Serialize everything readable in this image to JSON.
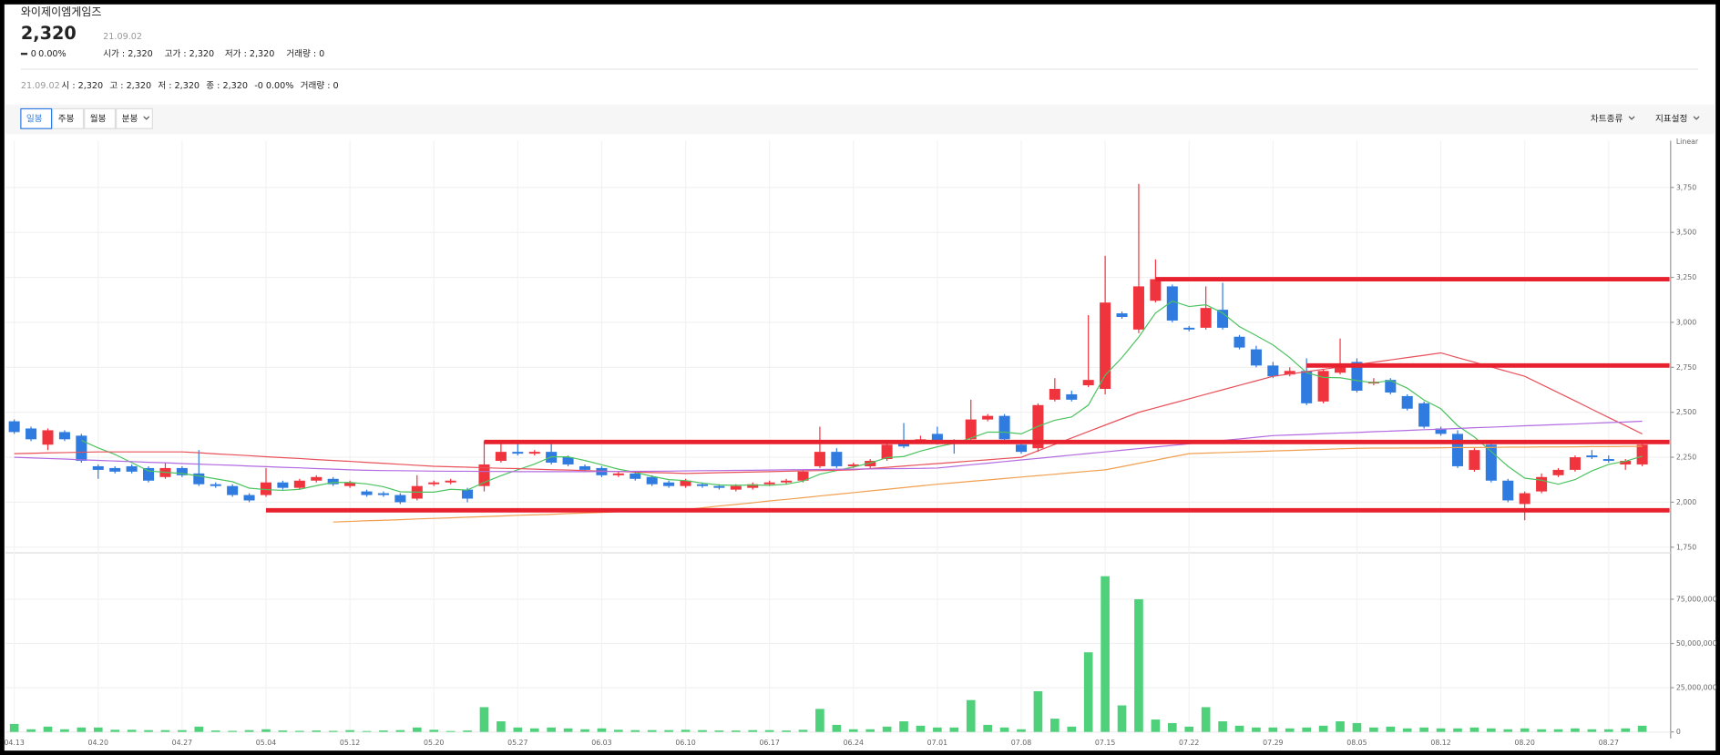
{
  "header": {
    "name": "와이제이엠게임즈",
    "price": "2,320",
    "date": "21.09.02",
    "change": "0",
    "change_pct": "0.00%",
    "stats": [
      "시가 : 2,320",
      "고가 : 2,320",
      "저가 : 2,320",
      "거래량 : 0"
    ]
  },
  "info_line": {
    "date": "21.09.02",
    "items": [
      "시 : 2,320",
      "고 : 2,320",
      "저 : 2,320",
      "종 : 2,320",
      "-0 0.00%",
      "거래량 : 0"
    ]
  },
  "toolbar": {
    "tabs": [
      "일봉",
      "주봉",
      "월봉",
      "분봉"
    ],
    "active_tab": 0,
    "menus": [
      "차트종류",
      "지표설정"
    ]
  },
  "chart_data": [
    {
      "type": "candlestick",
      "scale_label": "Linear",
      "up_color": "#f0343e",
      "down_color": "#2f7be0",
      "ylim": [
        1725,
        4010
      ],
      "yticks": [
        {
          "value": 1750,
          "label": "1,750"
        },
        {
          "value": 2000,
          "label": "2,000"
        },
        {
          "value": 2250,
          "label": "2,250"
        },
        {
          "value": 2500,
          "label": "2,500"
        },
        {
          "value": 2750,
          "label": "2,750"
        },
        {
          "value": 3000,
          "label": "3,000"
        },
        {
          "value": 3250,
          "label": "3,250"
        },
        {
          "value": 3500,
          "label": "3,500"
        },
        {
          "value": 3750,
          "label": "3,750"
        }
      ],
      "grid": true,
      "open": [
        2450,
        2410,
        2320,
        2390,
        2370,
        2200,
        2190,
        2200,
        2190,
        2140,
        2190,
        2160,
        2100,
        2090,
        2040,
        2040,
        2110,
        2080,
        2120,
        2130,
        2090,
        2060,
        2050,
        2040,
        2020,
        2100,
        2110,
        2070,
        2090,
        2230,
        2280,
        2270,
        2280,
        2250,
        2200,
        2190,
        2150,
        2160,
        2140,
        2110,
        2090,
        2100,
        2090,
        2070,
        2080,
        2100,
        2110,
        2120,
        2200,
        2280,
        2200,
        2200,
        2240,
        2330,
        2340,
        2380,
        2340,
        2350,
        2460,
        2480,
        2320,
        2300,
        2570,
        2600,
        2650,
        2630,
        3050,
        2960,
        3120,
        3200,
        2970,
        2970,
        3070,
        2920,
        2850,
        2760,
        2710,
        2730,
        2560,
        2720,
        2780,
        2660,
        2680,
        2590,
        2550,
        2410,
        2380,
        2180,
        2320,
        2120,
        1990,
        2060,
        2150,
        2180,
        2260,
        2240,
        2210,
        2210
      ],
      "high": [
        2460,
        2420,
        2410,
        2400,
        2380,
        2210,
        2200,
        2210,
        2200,
        2220,
        2200,
        2290,
        2110,
        2100,
        2050,
        2190,
        2120,
        2130,
        2150,
        2140,
        2120,
        2070,
        2060,
        2050,
        2150,
        2120,
        2130,
        2080,
        2340,
        2330,
        2330,
        2290,
        2330,
        2260,
        2210,
        2200,
        2170,
        2170,
        2150,
        2120,
        2130,
        2110,
        2100,
        2100,
        2110,
        2120,
        2130,
        2180,
        2420,
        2300,
        2220,
        2240,
        2330,
        2440,
        2370,
        2420,
        2350,
        2570,
        2490,
        2490,
        2340,
        2550,
        2690,
        2620,
        3040,
        3370,
        3060,
        3770,
        3350,
        3210,
        2980,
        3200,
        3220,
        2930,
        2870,
        2780,
        2750,
        2800,
        2740,
        2910,
        2800,
        2690,
        2690,
        2600,
        2560,
        2420,
        2400,
        2300,
        2330,
        2130,
        2060,
        2160,
        2190,
        2260,
        2290,
        2260,
        2240,
        2330
      ],
      "low": [
        2380,
        2340,
        2290,
        2340,
        2220,
        2130,
        2160,
        2160,
        2110,
        2130,
        2140,
        2090,
        2080,
        2030,
        2000,
        2030,
        2070,
        2070,
        2110,
        2090,
        2080,
        2030,
        2030,
        1990,
        2010,
        2090,
        2100,
        2000,
        2060,
        2220,
        2260,
        2260,
        2210,
        2200,
        2170,
        2140,
        2140,
        2120,
        2090,
        2080,
        2080,
        2080,
        2070,
        2060,
        2070,
        2090,
        2100,
        2110,
        2190,
        2190,
        2190,
        2190,
        2230,
        2300,
        2330,
        2320,
        2270,
        2340,
        2450,
        2340,
        2270,
        2280,
        2560,
        2560,
        2640,
        2600,
        3020,
        2940,
        3110,
        3000,
        2950,
        2960,
        2960,
        2850,
        2750,
        2690,
        2700,
        2540,
        2550,
        2710,
        2610,
        2650,
        2600,
        2510,
        2410,
        2370,
        2190,
        2170,
        2110,
        2000,
        1900,
        2050,
        2140,
        2170,
        2240,
        2220,
        2180,
        2200
      ],
      "close": [
        2390,
        2350,
        2400,
        2350,
        2230,
        2180,
        2170,
        2170,
        2120,
        2190,
        2150,
        2100,
        2090,
        2040,
        2010,
        2110,
        2080,
        2120,
        2140,
        2100,
        2110,
        2040,
        2040,
        2000,
        2090,
        2110,
        2120,
        2020,
        2210,
        2280,
        2270,
        2280,
        2220,
        2210,
        2180,
        2150,
        2160,
        2130,
        2100,
        2090,
        2120,
        2090,
        2080,
        2090,
        2100,
        2110,
        2120,
        2170,
        2280,
        2200,
        2210,
        2230,
        2320,
        2310,
        2350,
        2330,
        2330,
        2460,
        2480,
        2350,
        2280,
        2540,
        2630,
        2570,
        2680,
        3110,
        3030,
        3200,
        3240,
        3010,
        2960,
        3080,
        2970,
        2860,
        2760,
        2700,
        2730,
        2550,
        2730,
        2750,
        2620,
        2670,
        2610,
        2520,
        2420,
        2380,
        2200,
        2290,
        2120,
        2010,
        2050,
        2140,
        2180,
        2250,
        2250,
        2230,
        2230,
        2320
      ],
      "series": [
        {
          "color": "#4cc35f",
          "values": [
            null,
            null,
            null,
            null,
            2344,
            2302,
            2266,
            2220,
            2174,
            2166,
            2160,
            2146,
            2130,
            2114,
            2078,
            2070,
            2066,
            2072,
            2092,
            2110,
            2110,
            2102,
            2086,
            2058,
            2056,
            2056,
            2072,
            2068,
            2110,
            2148,
            2180,
            2212,
            2252,
            2252,
            2232,
            2208,
            2184,
            2166,
            2144,
            2126,
            2120,
            2106,
            2096,
            2094,
            2096,
            2094,
            2100,
            2118,
            2156,
            2176,
            2196,
            2218,
            2248,
            2254,
            2284,
            2308,
            2328,
            2356,
            2390,
            2390,
            2380,
            2422,
            2456,
            2474,
            2540,
            2706,
            2804,
            2918,
            3052,
            3118,
            3088,
            3098,
            3052,
            2976,
            2926,
            2874,
            2804,
            2720,
            2694,
            2692,
            2676,
            2664,
            2676,
            2634,
            2568,
            2520,
            2426,
            2362,
            2282,
            2200,
            2134,
            2122,
            2100,
            2126,
            2174,
            2210,
            2228,
            2256
          ]
        },
        {
          "color": "#e8515a",
          "values": [
            2270,
            2272,
            2274,
            2276,
            2278,
            2280,
            2280,
            2280,
            2280,
            2280,
            2280,
            2275,
            2269,
            2264,
            2259,
            2253,
            2248,
            2243,
            2237,
            2232,
            2227,
            2221,
            2216,
            2211,
            2205,
            2200,
            2197,
            2195,
            2192,
            2189,
            2187,
            2184,
            2181,
            2179,
            2176,
            2173,
            2171,
            2168,
            2165,
            2163,
            2160,
            2162,
            2164,
            2166,
            2168,
            2170,
            2172,
            2174,
            2176,
            2178,
            2180,
            2187,
            2194,
            2201,
            2208,
            2215,
            2222,
            2229,
            2236,
            2243,
            2250,
            2286,
            2321,
            2357,
            2393,
            2429,
            2464,
            2500,
            2525,
            2550,
            2575,
            2600,
            2625,
            2650,
            2675,
            2700,
            2713,
            2726,
            2739,
            2752,
            2765,
            2778,
            2791,
            2804,
            2817,
            2830,
            2804,
            2778,
            2752,
            2726,
            2700,
            2654,
            2609,
            2563,
            2517,
            2471,
            2426,
            2380
          ]
        },
        {
          "color": "#b26be0",
          "values": [
            2250,
            2247,
            2243,
            2240,
            2236,
            2233,
            2229,
            2226,
            2222,
            2219,
            2215,
            2212,
            2208,
            2205,
            2201,
            2198,
            2194,
            2191,
            2187,
            2184,
            2180,
            2178,
            2176,
            2175,
            2174,
            2173,
            2172,
            2172,
            2171,
            2171,
            2170,
            2170,
            2170,
            2170,
            2170,
            2171,
            2171,
            2172,
            2172,
            2173,
            2174,
            2175,
            2176,
            2177,
            2178,
            2179,
            2180,
            2181,
            2182,
            2183,
            2184,
            2185,
            2186,
            2187,
            2188,
            2190,
            2199,
            2208,
            2217,
            2226,
            2235,
            2244,
            2253,
            2262,
            2271,
            2280,
            2289,
            2298,
            2307,
            2316,
            2325,
            2334,
            2343,
            2352,
            2361,
            2370,
            2374,
            2377,
            2381,
            2385,
            2388,
            2392,
            2395,
            2399,
            2403,
            2406,
            2410,
            2414,
            2417,
            2421,
            2425,
            2428,
            2432,
            2435,
            2439,
            2443,
            2446,
            2450
          ]
        },
        {
          "color": "#f0a050",
          "values": [
            null,
            null,
            null,
            null,
            null,
            null,
            null,
            null,
            null,
            null,
            null,
            null,
            null,
            null,
            null,
            null,
            null,
            null,
            null,
            1890,
            1893,
            1897,
            1900,
            1903,
            1907,
            1910,
            1913,
            1917,
            1920,
            1923,
            1927,
            1930,
            1933,
            1937,
            1940,
            1943,
            1947,
            1950,
            1953,
            1957,
            1960,
            1969,
            1979,
            1988,
            1997,
            2007,
            2016,
            2025,
            2035,
            2044,
            2053,
            2063,
            2072,
            2081,
            2091,
            2100,
            2108,
            2116,
            2124,
            2132,
            2140,
            2148,
            2156,
            2164,
            2172,
            2180,
            2198,
            2216,
            2234,
            2252,
            2270,
            2273,
            2276,
            2279,
            2282,
            2285,
            2288,
            2291,
            2294,
            2297,
            2300,
            2301,
            2301,
            2302,
            2302,
            2303,
            2304,
            2304,
            2305,
            2306,
            2306,
            2307,
            2307,
            2308,
            2309,
            2309,
            2310,
            2310
          ]
        }
      ],
      "lines": [
        {
          "value": 3240,
          "start": 68,
          "color": "#e8212e"
        },
        {
          "value": 2760,
          "start": 77,
          "color": "#e8212e"
        },
        {
          "value": 2335,
          "start": 28,
          "color": "#e8212e"
        },
        {
          "value": 1955,
          "start": 15,
          "color": "#e8212e"
        }
      ]
    },
    {
      "type": "bar",
      "color": "#4fd07a",
      "ylim": [
        0,
        100000000
      ],
      "yticks": [
        0,
        {
          "value": 25000000,
          "label": "25,000,000"
        },
        {
          "value": 50000000,
          "label": "50,000,000"
        },
        {
          "value": 75000000,
          "label": "75,000,000"
        }
      ],
      "grid": true,
      "categories": [
        "04.13",
        null,
        null,
        null,
        null,
        "04.20",
        null,
        null,
        null,
        null,
        "04.27",
        null,
        null,
        null,
        null,
        "05.04",
        null,
        null,
        null,
        null,
        "05.12",
        null,
        null,
        null,
        null,
        "05.20",
        null,
        null,
        null,
        null,
        "05.27",
        null,
        null,
        null,
        null,
        "06.03",
        null,
        null,
        null,
        null,
        "06.10",
        null,
        null,
        null,
        null,
        "06.17",
        null,
        null,
        null,
        null,
        "06.24",
        null,
        null,
        null,
        null,
        "07.01",
        null,
        null,
        null,
        null,
        "07.08",
        null,
        null,
        null,
        null,
        "07.15",
        null,
        null,
        null,
        null,
        "07.22",
        null,
        null,
        null,
        null,
        "07.29",
        null,
        null,
        null,
        null,
        "08.05",
        null,
        null,
        null,
        null,
        "08.12",
        null,
        null,
        null,
        null,
        "08.20",
        null,
        null,
        null,
        null,
        "08.27",
        null,
        null
      ],
      "values": [
        4500000,
        1500000,
        3000000,
        1500000,
        2500000,
        2500000,
        1200000,
        1200000,
        1000000,
        1000000,
        1000000,
        3000000,
        800000,
        600000,
        1000000,
        1500000,
        800000,
        600000,
        800000,
        600000,
        1000000,
        500000,
        800000,
        1000000,
        2500000,
        1200000,
        500000,
        800000,
        14000000,
        6000000,
        2500000,
        2000000,
        2500000,
        2000000,
        1500000,
        2000000,
        1200000,
        1000000,
        1000000,
        1000000,
        1200000,
        1000000,
        800000,
        800000,
        1000000,
        1000000,
        800000,
        1200000,
        13000000,
        4000000,
        1500000,
        1500000,
        3000000,
        6000000,
        3500000,
        2500000,
        2500000,
        18000000,
        4000000,
        2500000,
        1500000,
        23000000,
        7500000,
        3000000,
        45000000,
        88000000,
        15000000,
        75000000,
        7000000,
        5000000,
        3000000,
        14000000,
        6000000,
        3500000,
        2500000,
        2500000,
        2000000,
        2500000,
        3500000,
        6000000,
        5000000,
        2500000,
        3000000,
        2000000,
        2500000,
        2000000,
        2000000,
        2500000,
        2000000,
        1500000,
        2000000,
        1500000,
        1500000,
        2000000,
        1500000,
        1500000,
        2000000,
        3500000
      ]
    }
  ]
}
